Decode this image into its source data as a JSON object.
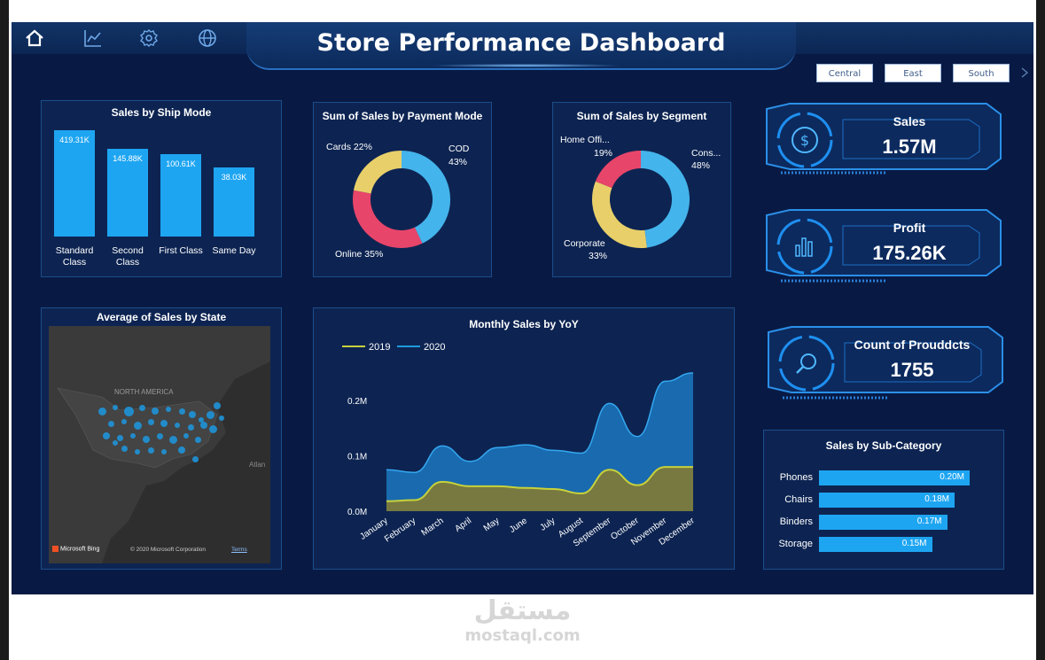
{
  "header": {
    "title": "Store Performance Dashboard",
    "nav_icons": [
      "home-icon",
      "line-chart-icon",
      "settings-icon",
      "globe-icon"
    ],
    "segment_buttons": [
      "Central",
      "East",
      "South"
    ]
  },
  "ship_mode": {
    "title": "Sales by Ship Mode",
    "bars": [
      {
        "value_label": "419.31K",
        "category_line1": "Standard",
        "category_line2": "Class",
        "value": 419.31
      },
      {
        "value_label": "145.88K",
        "category_line1": "Second",
        "category_line2": "Class",
        "value": 145.88
      },
      {
        "value_label": "100.61K",
        "category_line1": "First Class",
        "category_line2": "",
        "value": 100.61
      },
      {
        "value_label": "38.03K",
        "category_line1": "Same Day",
        "category_line2": "",
        "value": 38.03
      }
    ]
  },
  "payment_mode": {
    "title": "Sum of Sales by Payment Mode",
    "slices": [
      {
        "name": "COD",
        "pct_label": "43%",
        "value": 43,
        "color": "#44b4ec"
      },
      {
        "name": "Online",
        "pct_label": "35%",
        "value": 35,
        "color": "#e8456a"
      },
      {
        "name": "Cards",
        "pct_label": "22%",
        "value": 22,
        "color": "#e8cf6a"
      }
    ],
    "labels": {
      "cards": "Cards 22%",
      "cod_name": "COD",
      "cod_pct": "43%",
      "online": "Online 35%"
    }
  },
  "segment": {
    "title": "Sum of Sales by Segment",
    "slices": [
      {
        "name": "Cons...",
        "pct_label": "48%",
        "value": 48,
        "color": "#44b4ec"
      },
      {
        "name": "Corporate",
        "pct_label": "33%",
        "value": 33,
        "color": "#e8cf6a"
      },
      {
        "name": "Home Offi...",
        "pct_label": "19%",
        "value": 19,
        "color": "#e8456a"
      }
    ],
    "labels": {
      "home_name": "Home Offi...",
      "home_pct": "19%",
      "cons_name": "Cons...",
      "cons_pct": "48%",
      "corp_name": "Corporate",
      "corp_pct": "33%"
    }
  },
  "kpis": {
    "sales": {
      "label": "Sales",
      "value": "1.57M",
      "icon": "dollar-icon"
    },
    "profit": {
      "label": "Profit",
      "value": "175.26K",
      "icon": "bar-chart-icon"
    },
    "count": {
      "label": "Count of Prouddcts",
      "value": "1755",
      "icon": "magnifier-icon"
    }
  },
  "map": {
    "title": "Average of Sales by State",
    "region_label": "NORTH AMERICA",
    "ocean_label": "Atlan",
    "bing": "Microsoft Bing",
    "copyright": "© 2020 Microsoft Corporation",
    "terms": "Terms"
  },
  "chart_data": {
    "type": "area",
    "title": "Monthly Sales by YoY",
    "categories": [
      "January",
      "February",
      "March",
      "April",
      "May",
      "June",
      "July",
      "August",
      "September",
      "October",
      "November",
      "December"
    ],
    "series": [
      {
        "name": "2019",
        "color": "#c8d23a",
        "values": [
          0.018,
          0.02,
          0.053,
          0.045,
          0.045,
          0.042,
          0.04,
          0.032,
          0.075,
          0.047,
          0.08,
          0.08
        ]
      },
      {
        "name": "2020",
        "color": "#1e9be0",
        "values": [
          0.075,
          0.07,
          0.118,
          0.09,
          0.115,
          0.12,
          0.11,
          0.105,
          0.195,
          0.135,
          0.235,
          0.25
        ]
      }
    ],
    "y_ticks": [
      "0.0M",
      "0.1M",
      "0.2M"
    ],
    "ylim": [
      0,
      0.25
    ],
    "legend_position": "top-left"
  },
  "subcategory": {
    "title": "Sales by Sub-Category",
    "bars": [
      {
        "name": "Phones",
        "value_label": "0.20M",
        "value": 0.2
      },
      {
        "name": "Chairs",
        "value_label": "0.18M",
        "value": 0.18
      },
      {
        "name": "Binders",
        "value_label": "0.17M",
        "value": 0.17
      },
      {
        "name": "Storage",
        "value_label": "0.15M",
        "value": 0.15
      }
    ]
  },
  "watermark": {
    "arabic": "مستقل",
    "latin": "mostaql.com"
  }
}
